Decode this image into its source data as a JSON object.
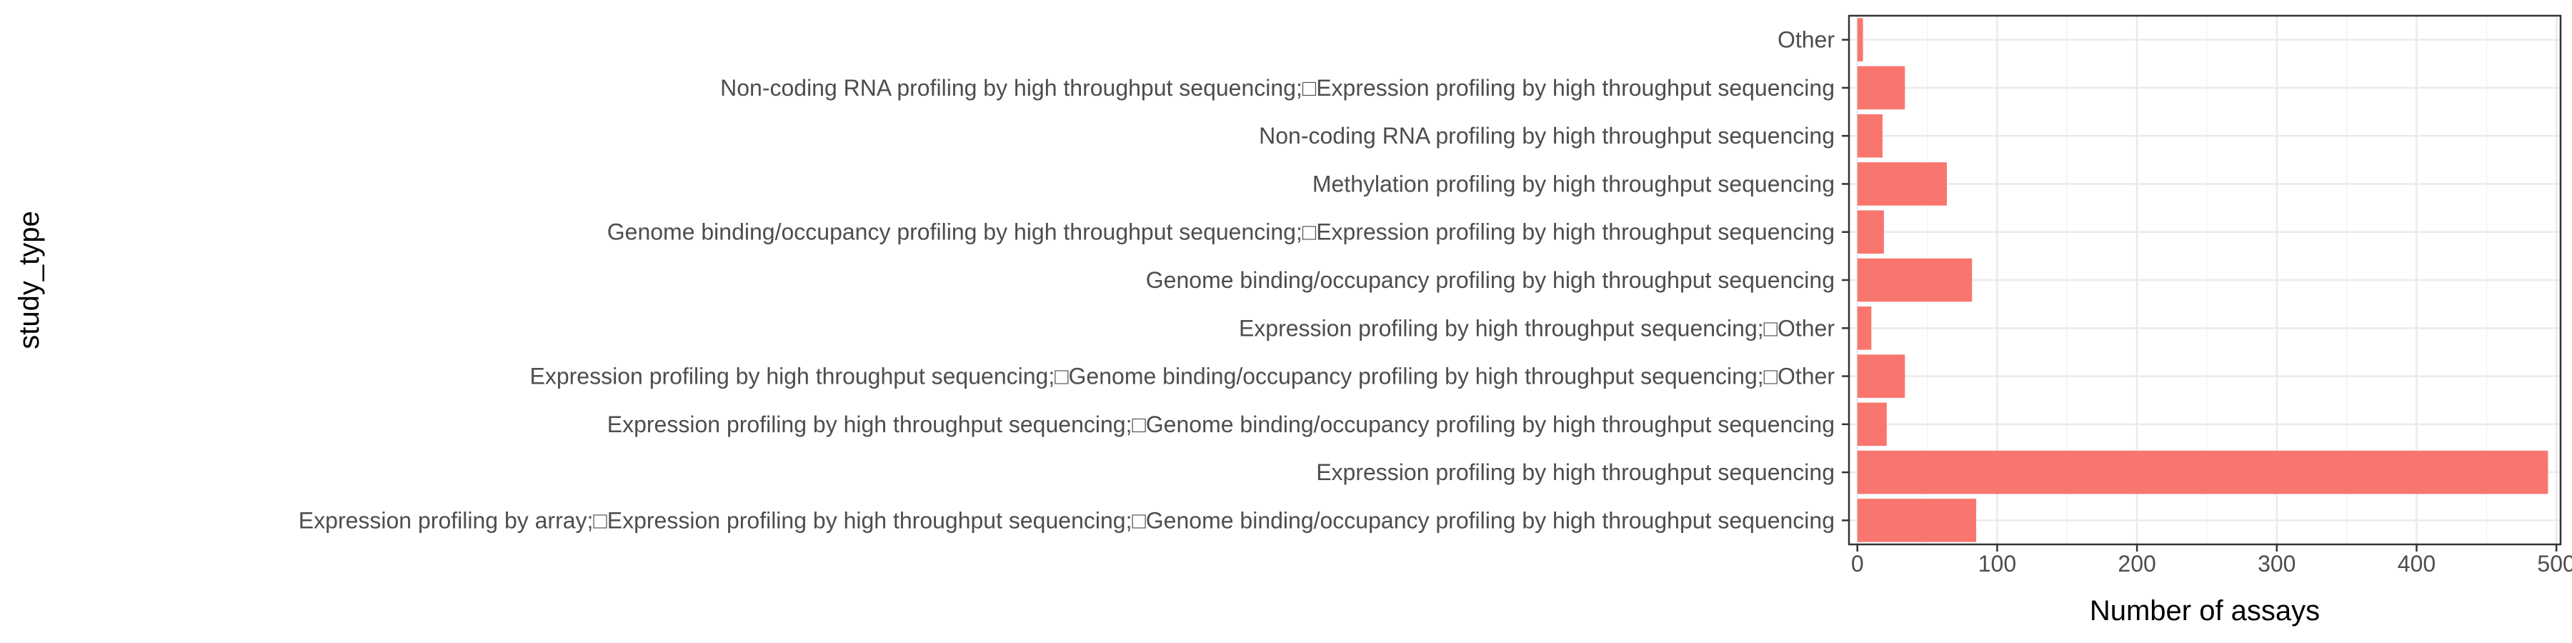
{
  "chart_data": {
    "type": "bar",
    "orientation": "horizontal",
    "title": "",
    "xlabel": "Number of assays",
    "ylabel": "study_type",
    "xlim": [
      -6,
      503
    ],
    "xticks": [
      0,
      100,
      200,
      300,
      400,
      500
    ],
    "grid": true,
    "legend": "none",
    "bar_color": "#F8766D",
    "categories": [
      "Expression profiling by array;□Expression profiling by high throughput sequencing;□Genome binding/occupancy profiling by high throughput sequencing",
      "Expression profiling by high throughput sequencing",
      "Expression profiling by high throughput sequencing;□Genome binding/occupancy profiling by high throughput sequencing",
      "Expression profiling by high throughput sequencing;□Genome binding/occupancy profiling by high throughput sequencing;□Other",
      "Expression profiling by high throughput sequencing;□Other",
      "Genome binding/occupancy profiling by high throughput sequencing",
      "Genome binding/occupancy profiling by high throughput sequencing;□Expression profiling by high throughput sequencing",
      "Methylation profiling by high throughput sequencing",
      "Non-coding RNA profiling by high throughput sequencing",
      "Non-coding RNA profiling by high throughput sequencing;□Expression profiling by high throughput sequencing",
      "Other"
    ],
    "values": [
      85,
      494,
      21,
      34,
      10,
      82,
      19,
      64,
      18,
      34,
      4
    ]
  }
}
